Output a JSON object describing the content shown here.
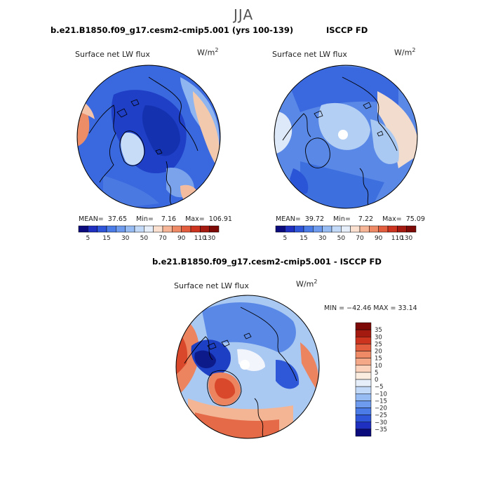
{
  "figure": {
    "title": "JJA"
  },
  "panels": [
    {
      "case_title": "b.e21.B1850.f09_g17.cesm2-cmip5.001 (yrs 100-139)",
      "variable": "Surface net LW flux",
      "units": "W/m",
      "units_exp": "2",
      "stats": {
        "mean_label": "MEAN=",
        "mean": "37.65",
        "min_label": "Min=",
        "min": "7.16",
        "max_label": "Max=",
        "max": "106.91"
      }
    },
    {
      "case_title": "ISCCP FD",
      "variable": "Surface net LW flux",
      "units": "W/m",
      "units_exp": "2",
      "stats": {
        "mean_label": "MEAN=",
        "mean": "39.72",
        "min_label": "Min=",
        "min": "7.22",
        "max_label": "Max=",
        "max": "75.09"
      }
    },
    {
      "case_title": "b.e21.B1850.f09_g17.cesm2-cmip5.001 - ISCCP FD",
      "variable": "Surface net LW flux",
      "units": "W/m",
      "units_exp": "2",
      "stats": {
        "text": "MIN = −42.46 MAX =  33.14"
      }
    }
  ],
  "colorbar_abs": {
    "labels": [
      "5",
      "15",
      "30",
      "50",
      "70",
      "90",
      "110",
      "130"
    ],
    "colors": [
      "#0b0b7d",
      "#1f2fbf",
      "#2f56d9",
      "#4a7be6",
      "#6f9bee",
      "#97bcf3",
      "#c2d9f7",
      "#e6eefa",
      "#fbe0d0",
      "#f5b596",
      "#ee8a66",
      "#e35e3f",
      "#cc3420",
      "#a51a10",
      "#7d0a06"
    ]
  },
  "colorbar_diff": {
    "labels": [
      "35",
      "30",
      "25",
      "20",
      "15",
      "10",
      "5",
      "0",
      "−5",
      "−10",
      "−15",
      "−20",
      "−25",
      "−30",
      "−35"
    ],
    "colors": [
      "#7d0a06",
      "#a51a10",
      "#cc3420",
      "#e35e3f",
      "#ee8a66",
      "#f5a888",
      "#fbd3bd",
      "#fbece0",
      "#e6eefa",
      "#c2d9f7",
      "#97bcf3",
      "#6f9bee",
      "#4a7be6",
      "#2f56d9",
      "#1f2fbf",
      "#0b0b7d"
    ]
  },
  "palette": {
    "deep_blue": "#1d3fc4",
    "blue": "#3a68de",
    "mid_blue": "#6a95ea",
    "light_blue": "#a9c8f2",
    "pale_blue": "#dce8f8",
    "cream": "#f7e8dc",
    "peach": "#f4b595",
    "orange": "#ec8460",
    "red": "#d9482b",
    "dark_navy": "#0d1a8a",
    "land_line": "#000000",
    "white": "#ffffff"
  }
}
